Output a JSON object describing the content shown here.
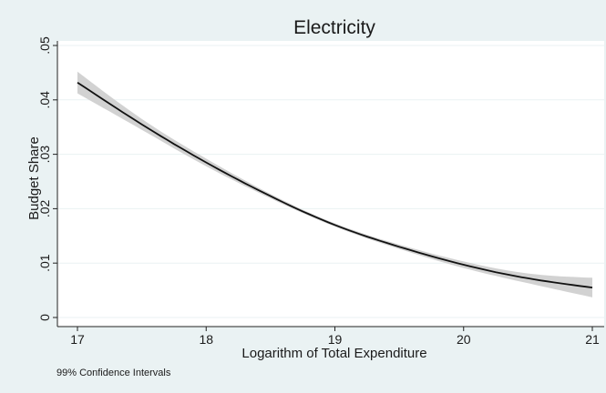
{
  "chart_data": {
    "type": "line",
    "title": "Electricity",
    "xlabel": "Logarithm of Total Expenditure",
    "ylabel": "Budget Share",
    "note": "99% Confidence Intervals",
    "xlim": [
      17,
      21
    ],
    "ylim": [
      0,
      0.05
    ],
    "xticks": [
      17,
      18,
      19,
      20,
      21
    ],
    "xtick_labels": [
      "17",
      "18",
      "19",
      "20",
      "21"
    ],
    "yticks": [
      0,
      0.01,
      0.02,
      0.03,
      0.04,
      0.05
    ],
    "ytick_labels": [
      "0",
      ".01",
      ".02",
      ".03",
      ".04",
      ".05"
    ],
    "grid": "horizontal",
    "legend": "none",
    "series": [
      {
        "x": [
          17.0,
          17.5,
          18.0,
          18.5,
          19.0,
          19.5,
          20.0,
          20.5,
          21.0
        ],
        "y": [
          0.0432,
          0.0355,
          0.0285,
          0.0223,
          0.017,
          0.013,
          0.0097,
          0.0072,
          0.0055
        ],
        "ci_lower": [
          0.0412,
          0.0345,
          0.0278,
          0.0219,
          0.0167,
          0.0126,
          0.0091,
          0.0063,
          0.0037
        ],
        "ci_upper": [
          0.0452,
          0.0365,
          0.0292,
          0.0227,
          0.0173,
          0.0134,
          0.0103,
          0.0081,
          0.0073
        ]
      }
    ],
    "colors": {
      "background": "#eaf2f3",
      "plot_area": "#ffffff",
      "line": "#111111",
      "ci_band": "#d2d2d2",
      "grid": "#eaf2f3"
    }
  }
}
